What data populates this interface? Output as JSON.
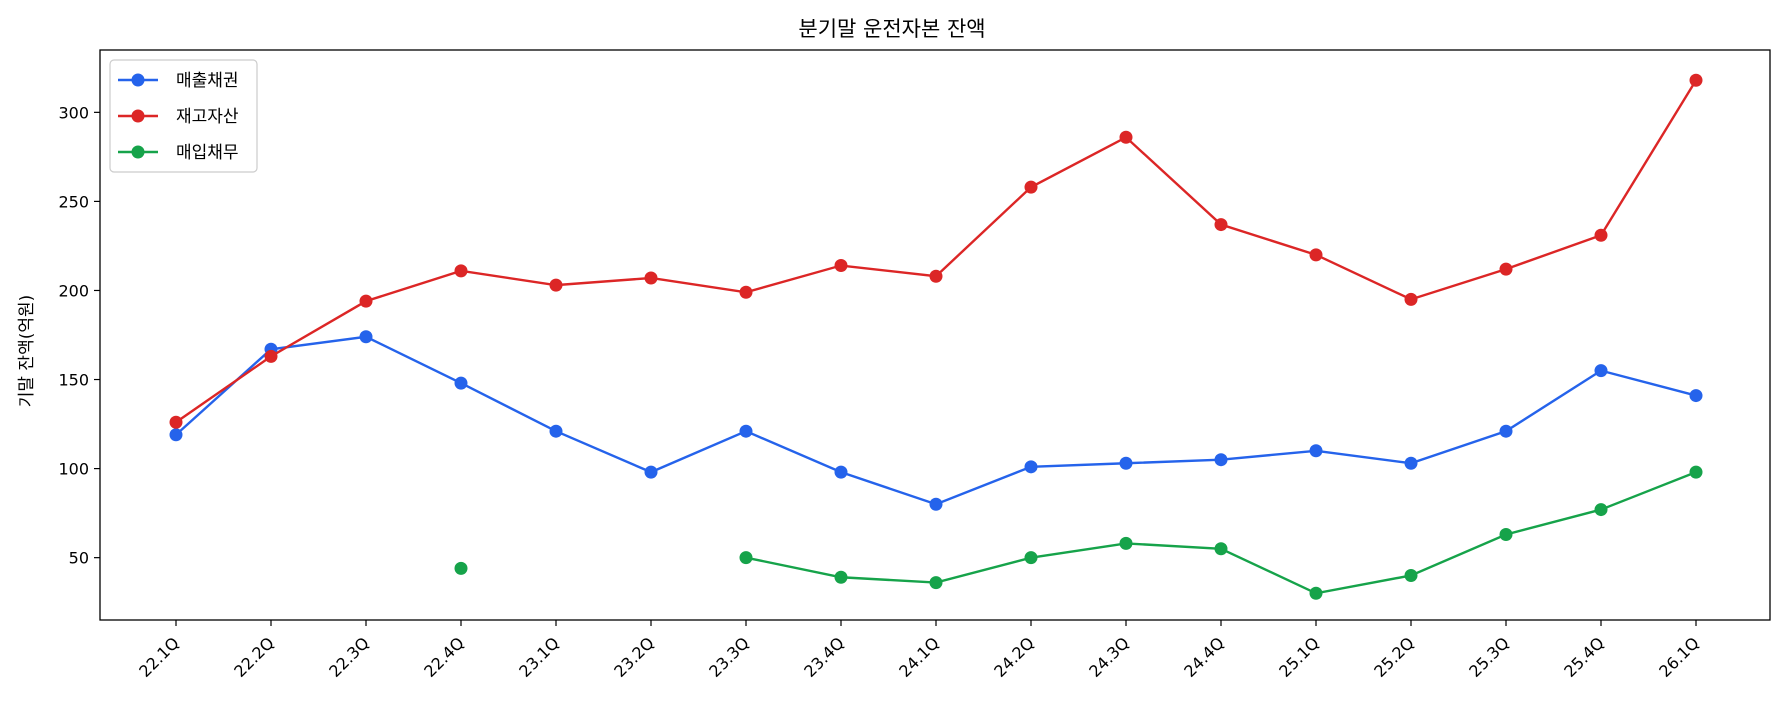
{
  "chart_data": {
    "type": "line",
    "title": "분기말 운전자본 잔액",
    "xlabel": "",
    "ylabel": "기말 잔액(억원)",
    "categories": [
      "22.1Q",
      "22.2Q",
      "22.3Q",
      "22.4Q",
      "23.1Q",
      "23.2Q",
      "23.3Q",
      "23.4Q",
      "24.1Q",
      "24.2Q",
      "24.3Q",
      "24.4Q",
      "25.1Q",
      "25.2Q",
      "25.3Q",
      "25.4Q",
      "26.1Q"
    ],
    "ylim": [
      15,
      335
    ],
    "yticks": [
      50,
      100,
      150,
      200,
      250,
      300
    ],
    "grid": false,
    "legend_position": "top-left",
    "series": [
      {
        "name": "매출채권",
        "color": "#2563eb",
        "values": [
          119,
          167,
          174,
          148,
          121,
          98,
          121,
          98,
          80,
          101,
          103,
          105,
          110,
          103,
          121,
          155,
          141
        ]
      },
      {
        "name": "재고자산",
        "color": "#dc2626",
        "values": [
          126,
          163,
          194,
          211,
          203,
          207,
          199,
          214,
          208,
          258,
          286,
          237,
          220,
          195,
          212,
          231,
          318
        ]
      },
      {
        "name": "매입채무",
        "color": "#16a34a",
        "values": [
          null,
          null,
          null,
          44,
          null,
          null,
          50,
          39,
          36,
          50,
          58,
          55,
          30,
          40,
          63,
          77,
          98
        ]
      }
    ]
  }
}
